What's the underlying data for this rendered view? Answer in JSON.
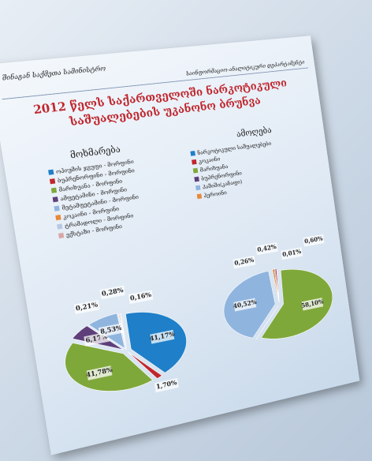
{
  "header": {
    "ministry": "შინაგან საქმეთა სამინისტრო",
    "department": "საინფორმაციო-ანალიტიკური დეპარტამენტი",
    "title": "2012 წელს საქართველოში ნარკოტიკული საშუალებების უკანონო ბრუნვა"
  },
  "chart_data": [
    {
      "type": "pie",
      "title": "მოხმარება",
      "categories": [
        "ოპიუმის ჯგუფი - მორფინი",
        "ბუპრენორფინი - მორფინი",
        "მარიხუანა - მორფინი",
        "ამფეტამინი - მორფინი",
        "მეტამფეტამინი - მორფინი",
        "კოკაინი - მორფინი",
        "ტრამადოლი - მორფინი",
        "ექსტაზი - მორფინი"
      ],
      "values": [
        41.17,
        1.7,
        41.78,
        6.17,
        8.53,
        0.21,
        0.28,
        0.16
      ],
      "value_labels": [
        "41,17%",
        "1,70%",
        "41,78%",
        "6,17%",
        "8,53%",
        "0,21%",
        "0,28%",
        "0,16%"
      ],
      "colors": [
        "#1f7fc9",
        "#c0262d",
        "#7fa83a",
        "#5e3f7a",
        "#8fb5df",
        "#e8893a",
        "#b7c8e4",
        "#d9a6a6"
      ]
    },
    {
      "type": "pie",
      "title": "ამოღება",
      "categories": [
        "ნარკოტიკული საშუალებები",
        "კოკაინი",
        "მარიხუანა",
        "ბუპრენორფინი",
        "ჰაშიში(კანაფი)",
        "ჰეროინი"
      ],
      "values": [
        0.26,
        0.42,
        58.1,
        0.01,
        40.52,
        0.6
      ],
      "value_labels": [
        "0,26%",
        "0,42%",
        "58,10%",
        "0,01%",
        "40,52%",
        "0,60%"
      ],
      "colors": [
        "#1f7fc9",
        "#c0262d",
        "#7fa83a",
        "#5e3f7a",
        "#8fb5df",
        "#e8893a"
      ]
    }
  ]
}
